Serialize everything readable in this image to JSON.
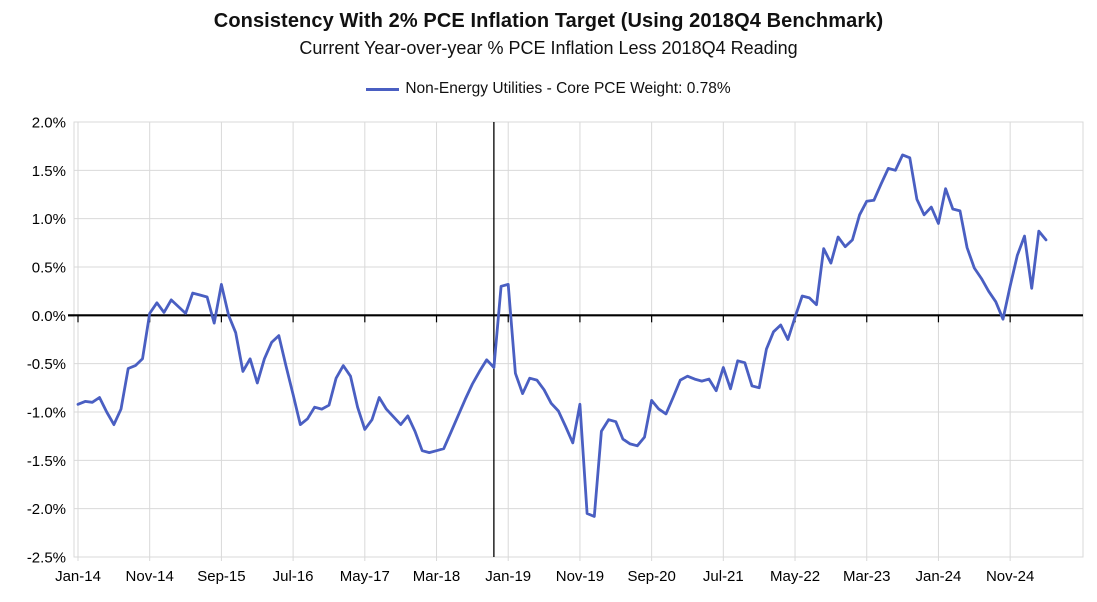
{
  "header": {
    "title": "Consistency With 2% PCE Inflation Target (Using 2018Q4 Benchmark)",
    "subtitle": "Current Year-over-year % PCE Inflation Less 2018Q4 Reading"
  },
  "legend": {
    "label": "Non-Energy Utilities - Core PCE Weight: 0.78%",
    "color": "#4a5fc2"
  },
  "chart_data": {
    "type": "line",
    "title": "Consistency With 2% PCE Inflation Target (Using 2018Q4 Benchmark)",
    "subtitle": "Current Year-over-year % PCE Inflation Less 2018Q4 Reading",
    "legend_position": "top",
    "grid": true,
    "ylim": [
      -2.5,
      2.0
    ],
    "y_step": 0.5,
    "y_tick_labels": [
      "2.0%",
      "1.5%",
      "1.0%",
      "0.5%",
      "0.0%",
      "-0.5%",
      "-1.0%",
      "-1.5%",
      "-2.0%",
      "-2.5%"
    ],
    "x_tick_labels": [
      "Jan-14",
      "Nov-14",
      "Sep-15",
      "Jul-16",
      "May-17",
      "Mar-18",
      "Jan-19",
      "Nov-19",
      "Sep-20",
      "Jul-21",
      "May-22",
      "Mar-23",
      "Jan-24",
      "Nov-24"
    ],
    "x_tick_every": 10,
    "zero_axis": true,
    "benchmark_vline_at": "Nov-18",
    "colors": {
      "grid": "#d9d9d9",
      "axis": "#000000",
      "line": "#4a5fc2",
      "background": "#ffffff",
      "text": "#000000"
    },
    "x": [
      "Jan-14",
      "Feb-14",
      "Mar-14",
      "Apr-14",
      "May-14",
      "Jun-14",
      "Jul-14",
      "Aug-14",
      "Sep-14",
      "Oct-14",
      "Nov-14",
      "Dec-14",
      "Jan-15",
      "Feb-15",
      "Mar-15",
      "Apr-15",
      "May-15",
      "Jun-15",
      "Jul-15",
      "Aug-15",
      "Sep-15",
      "Oct-15",
      "Nov-15",
      "Dec-15",
      "Jan-16",
      "Feb-16",
      "Mar-16",
      "Apr-16",
      "May-16",
      "Jun-16",
      "Jul-16",
      "Aug-16",
      "Sep-16",
      "Oct-16",
      "Nov-16",
      "Dec-16",
      "Jan-17",
      "Feb-17",
      "Mar-17",
      "Apr-17",
      "May-17",
      "Jun-17",
      "Jul-17",
      "Aug-17",
      "Sep-17",
      "Oct-17",
      "Nov-17",
      "Dec-17",
      "Jan-18",
      "Feb-18",
      "Mar-18",
      "Apr-18",
      "May-18",
      "Jun-18",
      "Jul-18",
      "Aug-18",
      "Sep-18",
      "Oct-18",
      "Nov-18",
      "Dec-18",
      "Jan-19",
      "Feb-19",
      "Mar-19",
      "Apr-19",
      "May-19",
      "Jun-19",
      "Jul-19",
      "Aug-19",
      "Sep-19",
      "Oct-19",
      "Nov-19",
      "Dec-19",
      "Jan-20",
      "Feb-20",
      "Mar-20",
      "Apr-20",
      "May-20",
      "Jun-20",
      "Jul-20",
      "Aug-20",
      "Sep-20",
      "Oct-20",
      "Nov-20",
      "Dec-20",
      "Jan-21",
      "Feb-21",
      "Mar-21",
      "Apr-21",
      "May-21",
      "Jun-21",
      "Jul-21",
      "Aug-21",
      "Sep-21",
      "Oct-21",
      "Nov-21",
      "Dec-21",
      "Jan-22",
      "Feb-22",
      "Mar-22",
      "Apr-22",
      "May-22",
      "Jun-22",
      "Jul-22",
      "Aug-22",
      "Sep-22",
      "Oct-22",
      "Nov-22",
      "Dec-22",
      "Jan-23",
      "Feb-23",
      "Mar-23",
      "Apr-23",
      "May-23",
      "Jun-23",
      "Jul-23",
      "Aug-23",
      "Sep-23",
      "Oct-23",
      "Nov-23",
      "Dec-23",
      "Jan-24",
      "Feb-24",
      "Mar-24",
      "Apr-24",
      "May-24",
      "Jun-24",
      "Jul-24",
      "Aug-24",
      "Sep-24",
      "Oct-24",
      "Nov-24",
      "Dec-24",
      "Jan-25",
      "Feb-25",
      "Mar-25",
      "Apr-25"
    ],
    "series": [
      {
        "name": "Non-Energy Utilities - Core PCE Weight: 0.78%",
        "color": "#4a5fc2",
        "values": [
          -0.92,
          -0.89,
          -0.9,
          -0.85,
          -1.0,
          -1.13,
          -0.97,
          -0.55,
          -0.52,
          -0.45,
          0.02,
          0.13,
          0.03,
          0.16,
          0.09,
          0.02,
          0.23,
          0.21,
          0.19,
          -0.08,
          0.32,
          0.0,
          -0.18,
          -0.58,
          -0.45,
          -0.7,
          -0.45,
          -0.28,
          -0.21,
          -0.52,
          -0.82,
          -1.13,
          -1.07,
          -0.95,
          -0.97,
          -0.93,
          -0.65,
          -0.52,
          -0.63,
          -0.95,
          -1.18,
          -1.08,
          -0.85,
          -0.97,
          -1.05,
          -1.13,
          -1.04,
          -1.2,
          -1.4,
          -1.42,
          -1.4,
          -1.38,
          -1.21,
          -1.04,
          -0.87,
          -0.71,
          -0.58,
          -0.46,
          -0.54,
          0.3,
          0.32,
          -0.6,
          -0.81,
          -0.65,
          -0.67,
          -0.77,
          -0.91,
          -0.99,
          -1.15,
          -1.32,
          -0.92,
          -2.05,
          -2.08,
          -1.2,
          -1.08,
          -1.1,
          -1.28,
          -1.33,
          -1.35,
          -1.26,
          -0.88,
          -0.97,
          -1.02,
          -0.85,
          -0.67,
          -0.63,
          -0.66,
          -0.68,
          -0.66,
          -0.78,
          -0.54,
          -0.76,
          -0.47,
          -0.49,
          -0.73,
          -0.75,
          -0.35,
          -0.17,
          -0.1,
          -0.25,
          -0.02,
          0.2,
          0.18,
          0.11,
          0.69,
          0.54,
          0.81,
          0.71,
          0.78,
          1.04,
          1.18,
          1.19,
          1.36,
          1.52,
          1.5,
          1.66,
          1.63,
          1.2,
          1.04,
          1.12,
          0.95,
          1.31,
          1.1,
          1.08,
          0.7,
          0.49,
          0.38,
          0.25,
          0.14,
          -0.04,
          0.3,
          0.62,
          0.82,
          0.28,
          0.87,
          0.78
        ]
      }
    ]
  }
}
